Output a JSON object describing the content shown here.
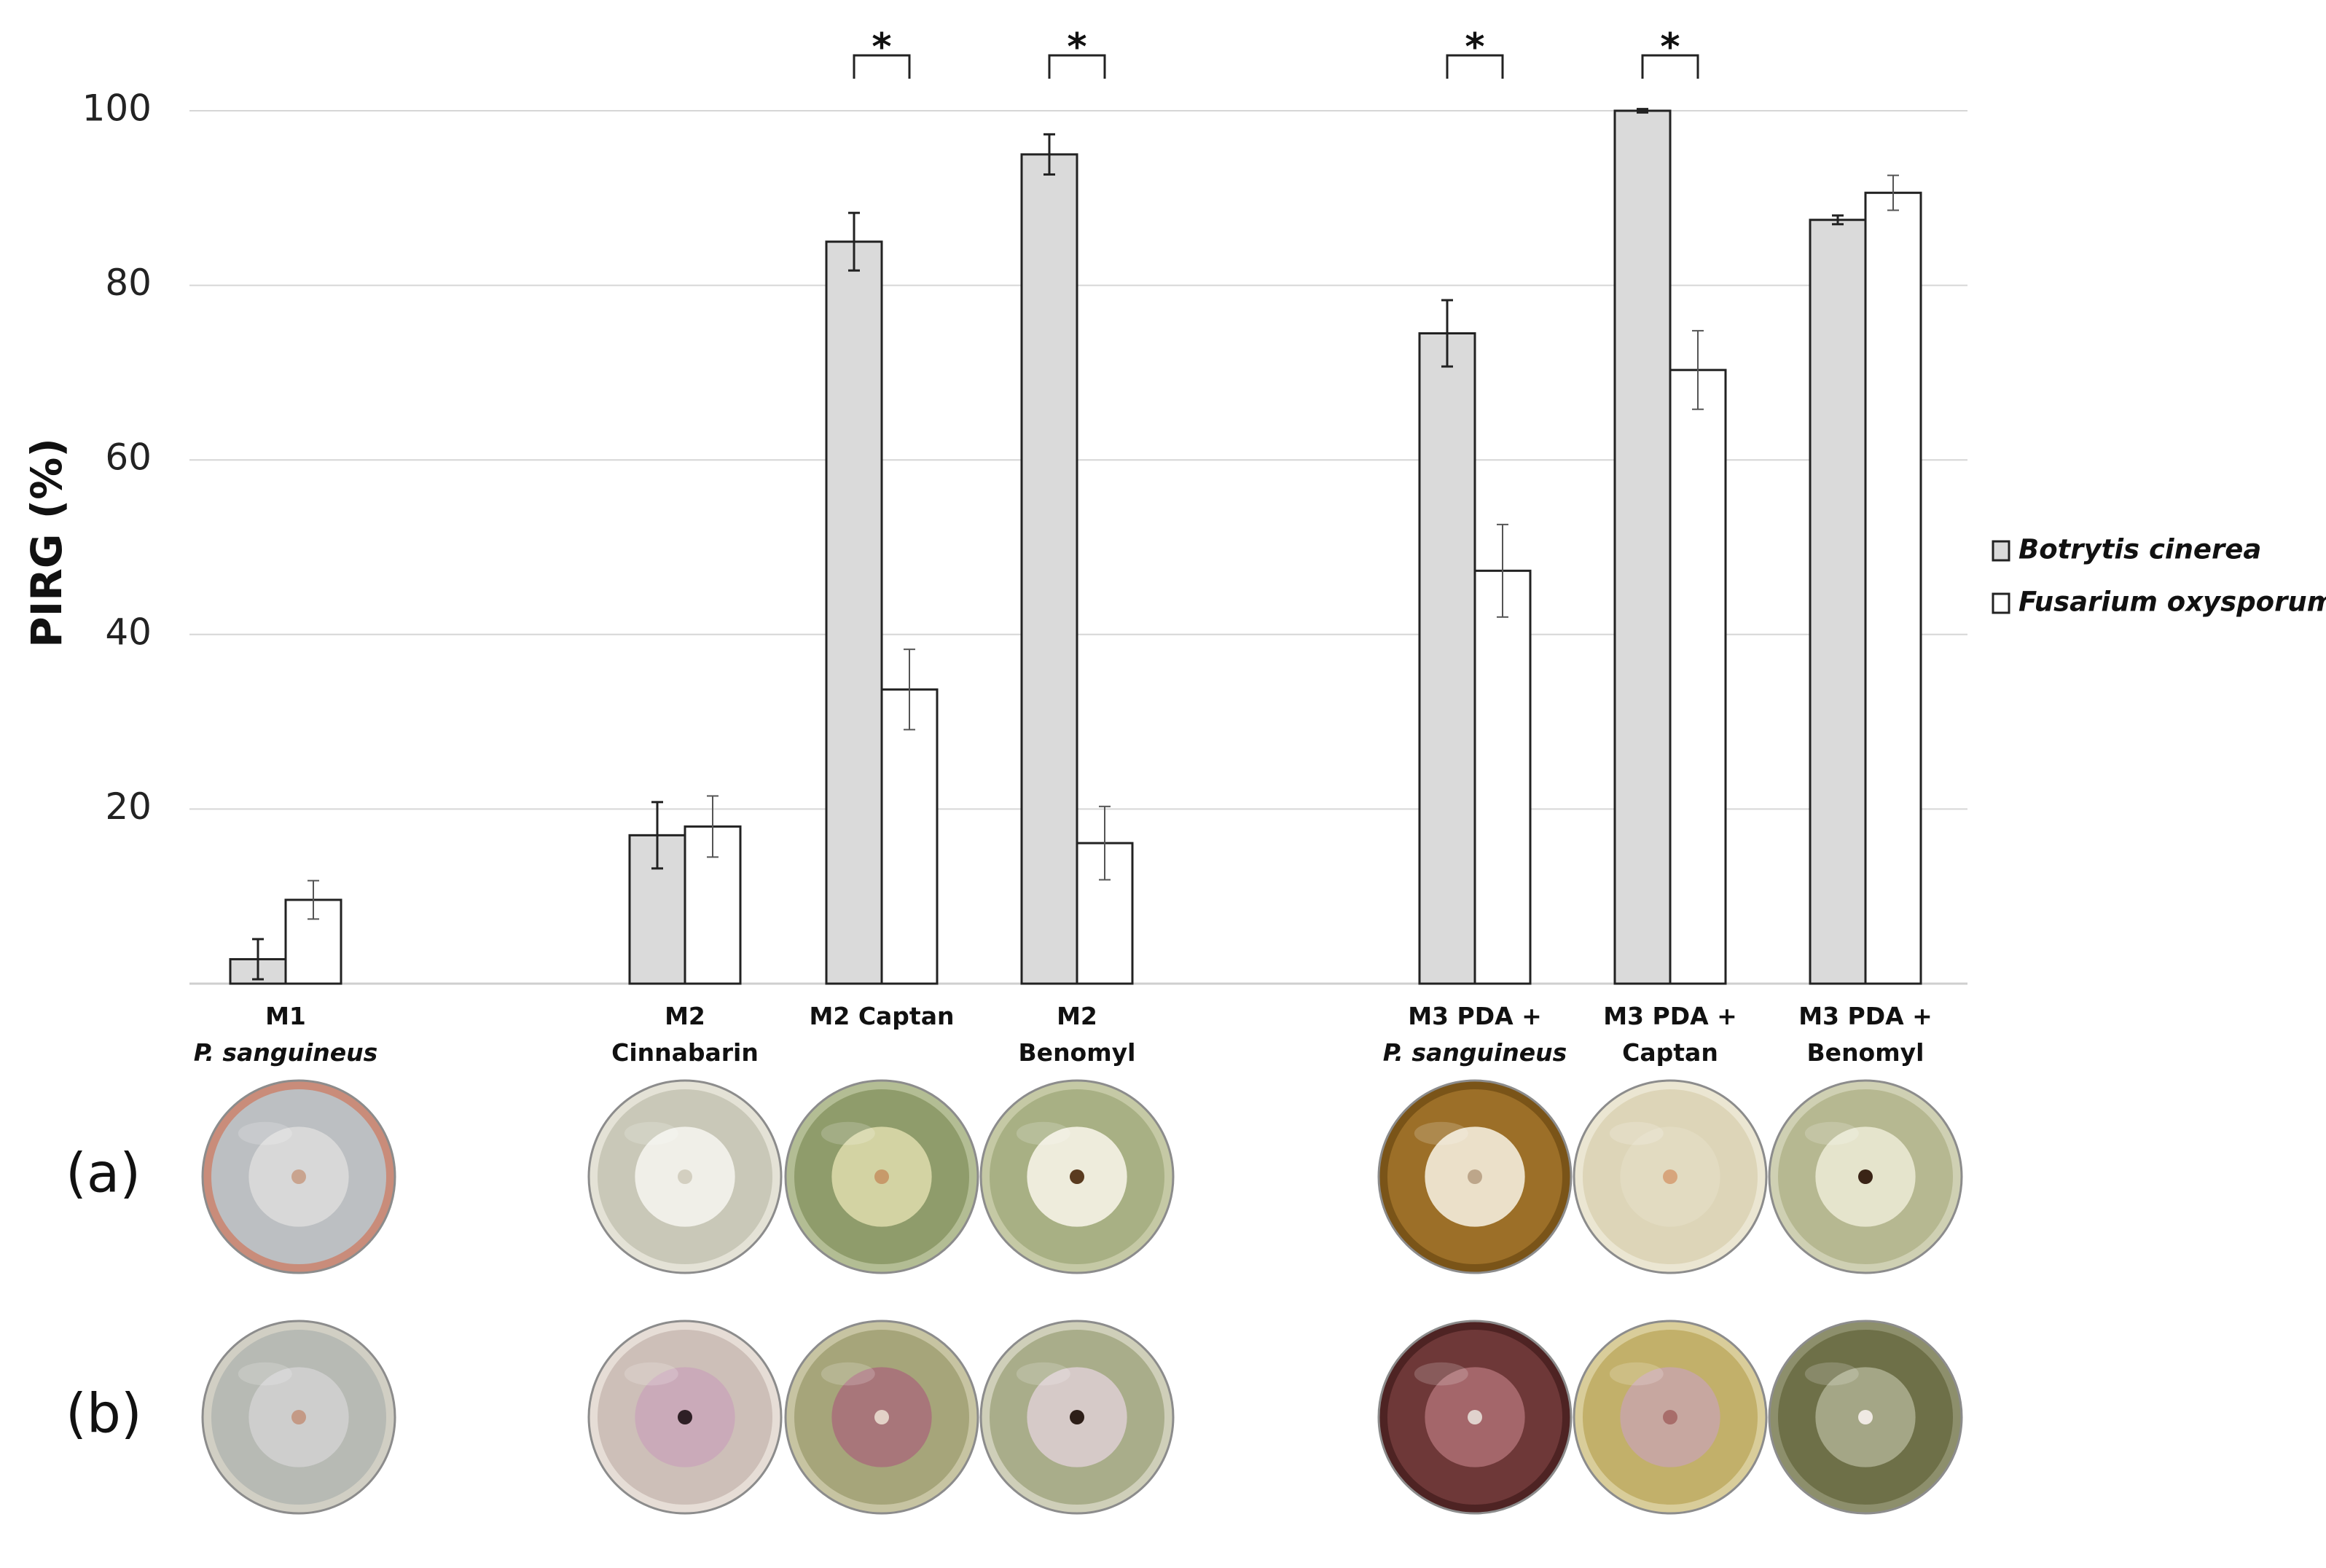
{
  "chart_data": {
    "type": "bar",
    "ylabel": "PIRG (%)",
    "yticks": [
      "20",
      "40",
      "60",
      "80",
      "100"
    ],
    "ylim": [
      0,
      100
    ],
    "grid": true,
    "categories": [
      {
        "lines": [
          "M1",
          "P. sanguineus"
        ],
        "italic_line": 1
      },
      {
        "lines": [
          "M2",
          "Cinnabarin"
        ]
      },
      {
        "lines": [
          "M2 Captan"
        ]
      },
      {
        "lines": [
          "M2",
          "Benomyl"
        ]
      },
      {
        "lines": [
          "M3 PDA +",
          "P. sanguineus"
        ],
        "italic_line": 1
      },
      {
        "lines": [
          "M3 PDA +",
          "Captan"
        ]
      },
      {
        "lines": [
          "M3 PDA +",
          "Benomyl"
        ]
      }
    ],
    "series": [
      {
        "name": "Botrytis cinerea",
        "color": "#dadada",
        "values": [
          2.8,
          17,
          85,
          95,
          74.5,
          100,
          87.5
        ],
        "errors": [
          2.3,
          3.8,
          3.3,
          2.3,
          3.8,
          0.2,
          0.5
        ]
      },
      {
        "name": "Fusarium oxysporum",
        "color": "#ffffff",
        "values": [
          9.6,
          18,
          33.7,
          16.1,
          47.3,
          70.3,
          90.6
        ],
        "errors": [
          2.2,
          3.5,
          4.6,
          4.2,
          5.3,
          4.5,
          2.0
        ]
      }
    ],
    "significance": [
      {
        "category": 2,
        "mark": "*"
      },
      {
        "category": 3,
        "mark": "*"
      },
      {
        "category": 4,
        "mark": "*"
      },
      {
        "category": 5,
        "mark": "*"
      }
    ],
    "legend_position": "right"
  },
  "photo_panels": {
    "rows": [
      {
        "label": "(a)"
      },
      {
        "label": "(b)"
      }
    ],
    "plates_a": [
      {
        "name": "m1-sanguineus-a",
        "bg": "#bcbfc2",
        "rim": "#c98c7a",
        "colony": "#d9d9d9",
        "center": "#c9a48f"
      },
      {
        "name": "m2-cinnabarin-a",
        "bg": "#c9c8b8",
        "rim": "#e4e2d6",
        "colony": "#f2f1ea",
        "center": "#d3cfc0"
      },
      {
        "name": "m2-captan-a",
        "bg": "#8f9c6b",
        "rim": "#b3bd94",
        "colony": "#d7d6a6",
        "center": "#c79a6a"
      },
      {
        "name": "m2-benomyl-a",
        "bg": "#a8b084",
        "rim": "#c5c9a5",
        "colony": "#f1efe0",
        "center": "#5a3b1f"
      },
      {
        "name": "m3-sanguineus-a",
        "bg": "#9c6f28",
        "rim": "#7a5418",
        "colony": "#efe6d2",
        "center": "#bda68a"
      },
      {
        "name": "m3-captan-a",
        "bg": "#ddd5b8",
        "rim": "#ebe6d2",
        "colony": "#e2dbc1",
        "center": "#d7a57c"
      },
      {
        "name": "m3-benomyl-a",
        "bg": "#b6b891",
        "rim": "#cfd0b3",
        "colony": "#e8e6d0",
        "center": "#3a2416"
      }
    ],
    "plates_b": [
      {
        "name": "m1-sanguineus-b",
        "bg": "#b7bab4",
        "rim": "#d1cfc4",
        "colony": "#cfcfcf",
        "center": "#c49a86"
      },
      {
        "name": "m2-cinnabarin-b",
        "bg": "#cdbfb8",
        "rim": "#e6ddd6",
        "colony": "#c9a9b8",
        "center": "#2e1f25"
      },
      {
        "name": "m2-captan-b",
        "bg": "#a6a57a",
        "rim": "#c7c4a2",
        "colony": "#a8737a",
        "center": "#e3d2c7"
      },
      {
        "name": "m2-benomyl-b",
        "bg": "#a9ad8a",
        "rim": "#cfcfb9",
        "colony": "#d8cbcb",
        "center": "#2d1e18"
      },
      {
        "name": "m3-sanguineus-b",
        "bg": "#6e3838",
        "rim": "#4e2323",
        "colony": "#a7686d",
        "center": "#e0d2cd"
      },
      {
        "name": "m3-captan-b",
        "bg": "#c2b06a",
        "rim": "#d9cd9a",
        "colony": "#c7a6a3",
        "center": "#a86d6a"
      },
      {
        "name": "m3-benomyl-b",
        "bg": "#6e7048",
        "rim": "#8d8f6c",
        "colony": "#a7a98a",
        "center": "#efe9e3"
      }
    ]
  }
}
